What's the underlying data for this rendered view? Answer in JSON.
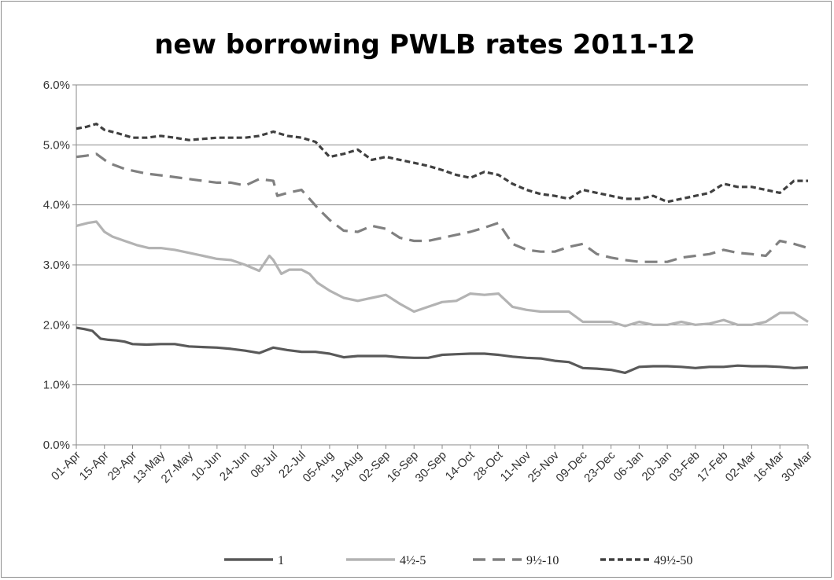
{
  "chart_data": {
    "type": "line",
    "title": "new borrowing PWLB rates 2011-12",
    "xlabel": "",
    "ylabel": "",
    "ylim": [
      0,
      0.06
    ],
    "yticks": [
      0,
      0.01,
      0.02,
      0.03,
      0.04,
      0.05,
      0.06
    ],
    "ytick_labels": [
      "0.0%",
      "1.0%",
      "2.0%",
      "3.0%",
      "4.0%",
      "5.0%",
      "6.0%"
    ],
    "grid": "horizontal",
    "legend_position": "bottom",
    "x_day_range": [
      0,
      364
    ],
    "x_ticks": [
      {
        "label": "01-Apr",
        "day": 0
      },
      {
        "label": "15-Apr",
        "day": 14
      },
      {
        "label": "29-Apr",
        "day": 28
      },
      {
        "label": "13-May",
        "day": 42
      },
      {
        "label": "27-May",
        "day": 56
      },
      {
        "label": "10-Jun",
        "day": 70
      },
      {
        "label": "24-Jun",
        "day": 84
      },
      {
        "label": "08-Jul",
        "day": 98
      },
      {
        "label": "22-Jul",
        "day": 112
      },
      {
        "label": "05-Aug",
        "day": 126
      },
      {
        "label": "19-Aug",
        "day": 140
      },
      {
        "label": "02-Sep",
        "day": 154
      },
      {
        "label": "16-Sep",
        "day": 168
      },
      {
        "label": "30-Sep",
        "day": 182
      },
      {
        "label": "14-Oct",
        "day": 196
      },
      {
        "label": "28-Oct",
        "day": 210
      },
      {
        "label": "11-Nov",
        "day": 224
      },
      {
        "label": "25-Nov",
        "day": 238
      },
      {
        "label": "09-Dec",
        "day": 252
      },
      {
        "label": "23-Dec",
        "day": 266
      },
      {
        "label": "06-Jan",
        "day": 280
      },
      {
        "label": "20-Jan",
        "day": 294
      },
      {
        "label": "03-Feb",
        "day": 308
      },
      {
        "label": "17-Feb",
        "day": 322
      },
      {
        "label": "02-Mar",
        "day": 336
      },
      {
        "label": "16-Mar",
        "day": 350
      },
      {
        "label": "30-Mar",
        "day": 364
      }
    ],
    "series": [
      {
        "name": "1",
        "color": "#595959",
        "dash": "solid",
        "days": [
          0,
          4,
          8,
          12,
          16,
          20,
          24,
          28,
          35,
          42,
          49,
          56,
          63,
          70,
          77,
          84,
          91,
          98,
          105,
          112,
          119,
          126,
          133,
          140,
          147,
          154,
          161,
          168,
          175,
          182,
          189,
          196,
          203,
          210,
          217,
          224,
          231,
          238,
          245,
          252,
          259,
          266,
          273,
          280,
          287,
          294,
          301,
          308,
          315,
          322,
          329,
          336,
          343,
          350,
          357,
          364
        ],
        "values": [
          0.0195,
          0.0193,
          0.019,
          0.0177,
          0.0175,
          0.0174,
          0.0172,
          0.0168,
          0.0167,
          0.0168,
          0.0168,
          0.0164,
          0.0163,
          0.0162,
          0.016,
          0.0157,
          0.0153,
          0.0162,
          0.0158,
          0.0155,
          0.0155,
          0.0152,
          0.0146,
          0.0148,
          0.0148,
          0.0148,
          0.0146,
          0.0145,
          0.0145,
          0.015,
          0.0151,
          0.0152,
          0.0152,
          0.015,
          0.0147,
          0.0145,
          0.0144,
          0.014,
          0.0138,
          0.0128,
          0.0127,
          0.0125,
          0.012,
          0.013,
          0.0131,
          0.0131,
          0.013,
          0.0128,
          0.013,
          0.013,
          0.0132,
          0.0131,
          0.0131,
          0.013,
          0.0128,
          0.0129
        ]
      },
      {
        "name": "4½-5",
        "color": "#b3b3b3",
        "dash": "solid",
        "days": [
          0,
          6,
          10,
          14,
          18,
          24,
          30,
          36,
          42,
          49,
          56,
          63,
          70,
          77,
          84,
          91,
          96,
          98,
          102,
          106,
          112,
          116,
          120,
          126,
          133,
          140,
          147,
          154,
          161,
          168,
          175,
          182,
          189,
          196,
          203,
          210,
          217,
          224,
          231,
          238,
          245,
          252,
          259,
          266,
          273,
          280,
          287,
          294,
          301,
          308,
          315,
          322,
          329,
          336,
          343,
          350,
          357,
          364
        ],
        "values": [
          0.0365,
          0.037,
          0.0372,
          0.0355,
          0.0347,
          0.034,
          0.0333,
          0.0328,
          0.0328,
          0.0325,
          0.032,
          0.0315,
          0.031,
          0.0308,
          0.03,
          0.029,
          0.0315,
          0.0308,
          0.0285,
          0.0292,
          0.0292,
          0.0285,
          0.027,
          0.0257,
          0.0245,
          0.024,
          0.0245,
          0.025,
          0.0235,
          0.0222,
          0.023,
          0.0238,
          0.024,
          0.0252,
          0.025,
          0.0252,
          0.023,
          0.0225,
          0.0222,
          0.0222,
          0.0222,
          0.0205,
          0.0205,
          0.0205,
          0.0198,
          0.0205,
          0.02,
          0.02,
          0.0205,
          0.02,
          0.0202,
          0.0208,
          0.02,
          0.02,
          0.0205,
          0.022,
          0.022,
          0.0205
        ]
      },
      {
        "name": "9½-10",
        "color": "#808080",
        "dash": "long-dash",
        "days": [
          0,
          5,
          10,
          16,
          24,
          35,
          45,
          56,
          63,
          70,
          77,
          84,
          91,
          98,
          100,
          105,
          112,
          116,
          120,
          126,
          133,
          140,
          147,
          154,
          161,
          168,
          175,
          182,
          189,
          196,
          203,
          210,
          217,
          224,
          231,
          238,
          245,
          252,
          259,
          266,
          273,
          280,
          287,
          294,
          301,
          308,
          315,
          322,
          329,
          336,
          343,
          350,
          357,
          364
        ],
        "values": [
          0.048,
          0.0482,
          0.0485,
          0.047,
          0.046,
          0.0452,
          0.0448,
          0.0443,
          0.044,
          0.0437,
          0.0437,
          0.0432,
          0.0443,
          0.044,
          0.0415,
          0.042,
          0.0425,
          0.041,
          0.0395,
          0.0375,
          0.0357,
          0.0355,
          0.0365,
          0.036,
          0.0345,
          0.034,
          0.034,
          0.0345,
          0.035,
          0.0355,
          0.0362,
          0.037,
          0.0335,
          0.0325,
          0.0322,
          0.0322,
          0.033,
          0.0335,
          0.0318,
          0.0312,
          0.0308,
          0.0305,
          0.0305,
          0.0305,
          0.0312,
          0.0315,
          0.0318,
          0.0325,
          0.032,
          0.0318,
          0.0315,
          0.034,
          0.0335,
          0.0328
        ]
      },
      {
        "name": "49½-50",
        "color": "#404040",
        "dash": "short-dash",
        "days": [
          0,
          5,
          10,
          14,
          20,
          28,
          35,
          42,
          49,
          56,
          63,
          70,
          77,
          84,
          91,
          98,
          105,
          112,
          119,
          126,
          133,
          140,
          147,
          154,
          161,
          168,
          175,
          182,
          189,
          196,
          203,
          210,
          217,
          224,
          231,
          238,
          245,
          252,
          259,
          266,
          273,
          280,
          287,
          294,
          301,
          308,
          315,
          322,
          329,
          336,
          343,
          350,
          357,
          364
        ],
        "values": [
          0.0527,
          0.053,
          0.0535,
          0.0525,
          0.052,
          0.0512,
          0.0512,
          0.0515,
          0.0512,
          0.0508,
          0.051,
          0.0512,
          0.0512,
          0.0512,
          0.0515,
          0.0522,
          0.0515,
          0.0512,
          0.0505,
          0.048,
          0.0485,
          0.0492,
          0.0475,
          0.048,
          0.0475,
          0.047,
          0.0465,
          0.0458,
          0.045,
          0.0445,
          0.0455,
          0.045,
          0.0435,
          0.0425,
          0.0418,
          0.0415,
          0.041,
          0.0425,
          0.042,
          0.0415,
          0.041,
          0.041,
          0.0415,
          0.0405,
          0.041,
          0.0415,
          0.042,
          0.0435,
          0.043,
          0.043,
          0.0425,
          0.042,
          0.044,
          0.044
        ]
      }
    ]
  }
}
